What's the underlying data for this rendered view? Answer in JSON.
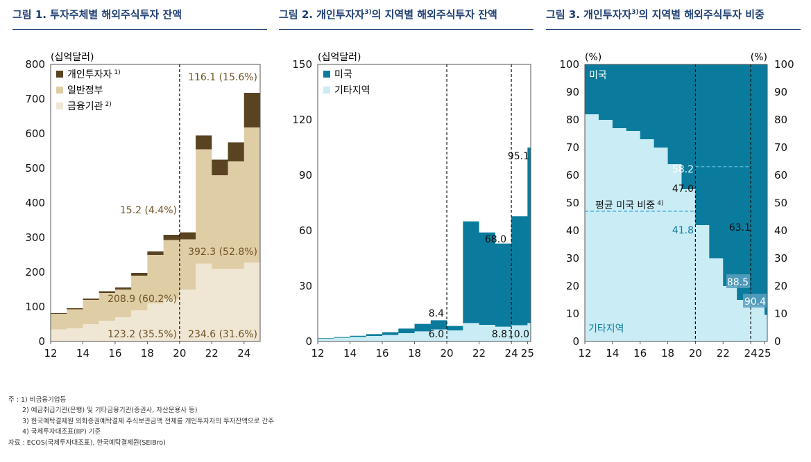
{
  "titles": {
    "c1": "그림 1. 투자주체별 해외주식투자 잔액",
    "c2_main": "그림 2. 개인투자자",
    "c2_sup": "3)",
    "c2_rest": "의 지역별 해외주식투자 잔액",
    "c3_main": "그림 3. 개인투자자",
    "c3_sup": "3)",
    "c3_rest": "의 지역별 해외주식투자 비중"
  },
  "colors": {
    "title": "#1f3f73",
    "individual": "#5a4321",
    "government": "#dfcda6",
    "financial": "#efe6d3",
    "us": "#0a7b9c",
    "other": "#c9ecf5",
    "annotation_brown": "#6e5325",
    "line_light": "#4fb3d6"
  },
  "chart_data": [
    {
      "id": "chart1",
      "type": "area",
      "stacked": true,
      "unit_label": "(십억달러)",
      "x": [
        "12",
        "13",
        "14",
        "15",
        "16",
        "17",
        "18",
        "19",
        "20",
        "21",
        "22",
        "23",
        "24",
        "25"
      ],
      "xticks": [
        "12",
        "14",
        "16",
        "18",
        "20",
        "22",
        "24"
      ],
      "xlim": [
        12,
        25
      ],
      "ylim": [
        0,
        800
      ],
      "yticks": [
        "0",
        "100",
        "200",
        "300",
        "400",
        "500",
        "600",
        "700",
        "800"
      ],
      "series": [
        {
          "name": "금융기관",
          "note": "2)",
          "values": [
            35,
            38,
            50,
            60,
            70,
            90,
            110,
            123,
            150,
            225,
            210,
            210,
            228,
            235
          ]
        },
        {
          "name": "일반정부",
          "values": [
            45,
            55,
            70,
            80,
            80,
            100,
            140,
            170,
            145,
            330,
            270,
            310,
            390,
            392
          ]
        },
        {
          "name": "개인투자자",
          "note": "1)",
          "values": [
            2,
            3,
            4,
            5,
            6,
            8,
            10,
            15,
            20,
            40,
            45,
            55,
            100,
            116
          ]
        }
      ],
      "vline": "20",
      "annotations": [
        "116.1 (15.6%)",
        "15.2 (4.4%)",
        "392.3 (52.8%)",
        "208.9 (60.2%)",
        "123.2 (35.5%)",
        "234.6 (31.6%)"
      ]
    },
    {
      "id": "chart2",
      "type": "area",
      "stacked": true,
      "unit_label": "(십억달러)",
      "x": [
        "12",
        "13",
        "14",
        "15",
        "16",
        "17",
        "18",
        "19",
        "20",
        "21",
        "22",
        "23",
        "24",
        "25"
      ],
      "xticks": [
        "12",
        "14",
        "16",
        "18",
        "20",
        "22",
        "24",
        "25"
      ],
      "xlim": [
        12,
        25.2
      ],
      "ylim": [
        0,
        150
      ],
      "yticks": [
        "0",
        "30",
        "60",
        "90",
        "120",
        "150"
      ],
      "series": [
        {
          "name": "기타지역",
          "values": [
            1.5,
            2,
            2.5,
            3,
            3.5,
            4.5,
            5.5,
            6.5,
            6,
            10,
            9,
            8,
            8.8,
            10
          ]
        },
        {
          "name": "미국",
          "values": [
            0.3,
            0.4,
            0.6,
            1,
            1.5,
            2.5,
            4,
            5,
            2.4,
            55,
            50,
            45,
            59,
            95
          ]
        }
      ],
      "vlines": [
        "20",
        "24"
      ],
      "annotations": [
        "95.1",
        "68.0",
        "8.4",
        "6.0",
        "8.8",
        "10.0"
      ]
    },
    {
      "id": "chart3",
      "type": "area",
      "stacked": true,
      "unit_label": "(%)",
      "x": [
        "12",
        "13",
        "14",
        "15",
        "16",
        "17",
        "18",
        "19",
        "20",
        "21",
        "22",
        "23",
        "24",
        "25"
      ],
      "xticks": [
        "12",
        "14",
        "16",
        "18",
        "20",
        "22",
        "24",
        "25"
      ],
      "xlim": [
        12,
        25.2
      ],
      "ylim": [
        0,
        100
      ],
      "yticks": [
        "0",
        "10",
        "20",
        "30",
        "40",
        "50",
        "60",
        "70",
        "80",
        "90",
        "100"
      ],
      "series": [
        {
          "name": "기타지역",
          "values": [
            82,
            80,
            77,
            76,
            73,
            70,
            64,
            55,
            42,
            30,
            20,
            15,
            13,
            9.6
          ]
        },
        {
          "name": "미국",
          "values": [
            18,
            20,
            23,
            24,
            27,
            30,
            36,
            45,
            58,
            70,
            80,
            85,
            87,
            90.4
          ]
        }
      ],
      "line": {
        "name": "평균 미국 비중",
        "note": "4)",
        "segments": [
          {
            "from": 12,
            "to": 20,
            "value": 47.0
          },
          {
            "from": 20,
            "to": 24,
            "value": 63.1
          }
        ]
      },
      "vlines": [
        "20",
        "24"
      ],
      "annotations": [
        "58.2",
        "47.0",
        "41.8",
        "63.1",
        "88.5",
        "90.4"
      ],
      "region_labels": [
        "미국",
        "기타지역"
      ]
    }
  ],
  "notes": {
    "n1": "주 : 1) 비금융기업등",
    "n2": "2) 예금취급기관(은행) 및 기타금융기관(증권사, 자산운용사 등)",
    "n3": "3) 한국예탁결제원 외화증권예탁결제 주식보관금액 전체를 개인투자자의 투자잔액으로 간주",
    "n4": "4) 국제투자대조표(IIP) 기준",
    "source": "자료 : ECOS(국제투자대조표), 한국예탁결제원(SEIBro)"
  }
}
